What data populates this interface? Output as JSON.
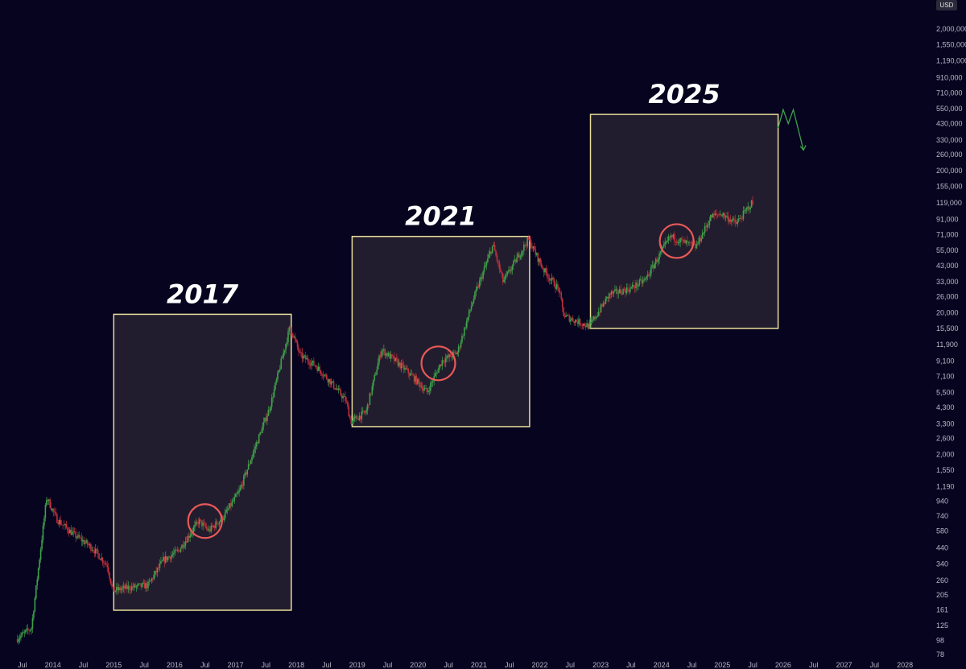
{
  "currency_label": "USD",
  "chart_data": {
    "type": "candlestick",
    "title": "",
    "xlabel": "",
    "ylabel": "",
    "y_scale": "log",
    "ylim": [
      70,
      2500000
    ],
    "colors": {
      "background": "#06041f",
      "up": "#3fa14a",
      "down": "#c2303a",
      "box_fill": "#221d2e",
      "box_border": "#e8dd9a",
      "circle": "#e85a57",
      "projection": "#3fa14a"
    },
    "y_ticks": [
      "2,000,000",
      "1,550,000",
      "1,190,000",
      "910,000",
      "710,000",
      "550,000",
      "430,000",
      "330,000",
      "260,000",
      "200,000",
      "155,000",
      "119,000",
      "91,000",
      "71,000",
      "55,000",
      "43,000",
      "33,000",
      "26,000",
      "20,000",
      "15,500",
      "11,900",
      "9,100",
      "7,100",
      "5,500",
      "4,300",
      "3,300",
      "2,600",
      "2,000",
      "1,550",
      "1,190",
      "940",
      "740",
      "580",
      "440",
      "340",
      "260",
      "205",
      "161",
      "125",
      "98",
      "78"
    ],
    "x_ticks": [
      "Jul",
      "2014",
      "Jul",
      "2015",
      "Jul",
      "2016",
      "Jul",
      "2017",
      "Jul",
      "2018",
      "Jul",
      "2019",
      "Jul",
      "2020",
      "Jul",
      "2021",
      "Jul",
      "2022",
      "Jul",
      "2023",
      "Jul",
      "2024",
      "Jul",
      "2025",
      "Jul",
      "2026",
      "Jul",
      "2027",
      "Jul",
      "2028"
    ],
    "series_points": [
      [
        "2013-06",
        100
      ],
      [
        "2013-09",
        120
      ],
      [
        "2013-12",
        1000
      ],
      [
        "2014-02",
        700
      ],
      [
        "2014-05",
        560
      ],
      [
        "2014-09",
        440
      ],
      [
        "2014-12",
        330
      ],
      [
        "2015-01",
        220
      ],
      [
        "2015-04",
        230
      ],
      [
        "2015-08",
        240
      ],
      [
        "2015-11",
        360
      ],
      [
        "2016-02",
        420
      ],
      [
        "2016-06",
        680
      ],
      [
        "2016-08",
        580
      ],
      [
        "2016-11",
        740
      ],
      [
        "2017-02",
        1100
      ],
      [
        "2017-05",
        2200
      ],
      [
        "2017-08",
        4300
      ],
      [
        "2017-12",
        16000
      ],
      [
        "2018-02",
        10000
      ],
      [
        "2018-05",
        8500
      ],
      [
        "2018-08",
        6500
      ],
      [
        "2018-11",
        4800
      ],
      [
        "2018-12",
        3400
      ],
      [
        "2019-03",
        4000
      ],
      [
        "2019-06",
        11000
      ],
      [
        "2019-09",
        9000
      ],
      [
        "2019-12",
        7200
      ],
      [
        "2020-03",
        5500
      ],
      [
        "2020-06",
        9200
      ],
      [
        "2020-09",
        10500
      ],
      [
        "2020-12",
        24000
      ],
      [
        "2021-04",
        60000
      ],
      [
        "2021-06",
        33000
      ],
      [
        "2021-11",
        66000
      ],
      [
        "2022-02",
        40000
      ],
      [
        "2022-05",
        29000
      ],
      [
        "2022-06",
        19000
      ],
      [
        "2022-11",
        16000
      ],
      [
        "2023-03",
        27000
      ],
      [
        "2023-07",
        29500
      ],
      [
        "2023-10",
        34000
      ],
      [
        "2024-03",
        69000
      ],
      [
        "2024-06",
        62000
      ],
      [
        "2024-08",
        58000
      ],
      [
        "2024-11",
        95000
      ],
      [
        "2025-01",
        100000
      ],
      [
        "2025-04",
        85000
      ],
      [
        "2025-07",
        118000
      ]
    ],
    "cycle_boxes": [
      {
        "label": "2017",
        "x_start": "2015-01",
        "x_end": "2017-12",
        "y_low": 160,
        "y_high": 19500
      },
      {
        "label": "2021",
        "x_start": "2018-12",
        "x_end": "2021-11",
        "y_low": 3150,
        "y_high": 69000
      },
      {
        "label": "2025",
        "x_start": "2022-11",
        "x_end": "2025-12",
        "y_low": 15500,
        "y_high": 500000
      }
    ],
    "halving_circles": [
      {
        "x": "2016-07",
        "y": 680
      },
      {
        "x": "2020-05",
        "y": 8800
      },
      {
        "x": "2024-04",
        "y": 64000
      }
    ],
    "projection_path": [
      [
        "2025-12",
        400000
      ],
      [
        "2026-01",
        540000
      ],
      [
        "2026-02",
        430000
      ],
      [
        "2026-03",
        540000
      ],
      [
        "2026-05",
        280000
      ]
    ]
  }
}
